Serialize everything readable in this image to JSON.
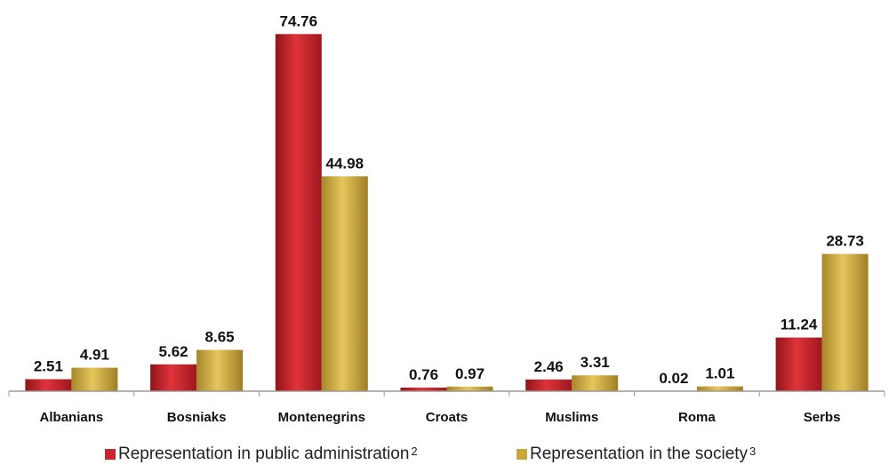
{
  "chart_data": {
    "type": "bar",
    "categories": [
      "Albanians",
      "Bosniaks",
      "Montenegrins",
      "Croats",
      "Muslims",
      "Roma",
      "Serbs"
    ],
    "series": [
      {
        "name": "Representation in public administration",
        "footnote": "2",
        "color": "#c8252c",
        "values": [
          2.51,
          5.62,
          74.76,
          0.76,
          2.46,
          0.02,
          11.24
        ],
        "labels": [
          "2.51",
          "5.62",
          "74.76",
          "0.76",
          "2.46",
          "0.02",
          "11.24"
        ]
      },
      {
        "name": "Representation in the society",
        "footnote": "3",
        "color": "#c9a63a",
        "values": [
          4.91,
          8.65,
          44.98,
          0.97,
          3.31,
          1.01,
          28.73
        ],
        "labels": [
          "4.91",
          "8.65",
          "44.98",
          "0.97",
          "3.31",
          "1.01",
          "28.73"
        ]
      }
    ],
    "title": "",
    "xlabel": "",
    "ylabel": "",
    "ylim": [
      0,
      75
    ],
    "grid": false,
    "legend_position": "bottom"
  }
}
